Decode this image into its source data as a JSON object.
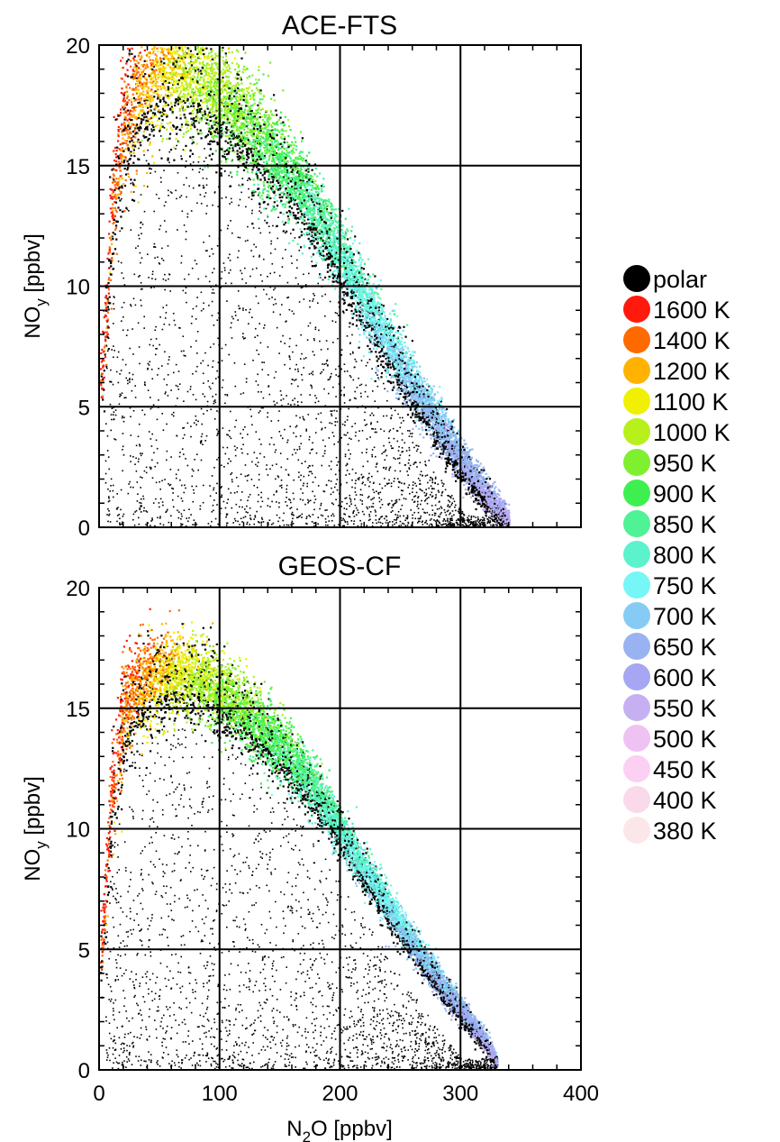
{
  "chart_data": [
    {
      "type": "scatter",
      "title": "ACE-FTS",
      "xlabel": "",
      "ylabel": {
        "base": "NO",
        "sub": "y",
        "unit": " [ppbv]"
      },
      "xlim": [
        0,
        400
      ],
      "ylim": [
        0,
        20
      ],
      "xticks": [
        0,
        100,
        200,
        300,
        400
      ],
      "xtick_labels_shown": false,
      "yticks": [
        0,
        5,
        10,
        15,
        20
      ],
      "grid": true,
      "series": [
        {
          "kind": "ridge",
          "x": [
            2,
            10,
            20,
            30,
            40,
            50,
            60,
            80,
            100,
            120,
            140,
            160,
            180,
            200,
            220,
            240,
            260,
            280,
            300,
            320,
            340
          ],
          "y": [
            6,
            13,
            16.5,
            17.8,
            18.5,
            18.8,
            18.9,
            18.6,
            17.8,
            16.8,
            15.6,
            14.4,
            13.0,
            11.2,
            9.4,
            7.6,
            5.9,
            4.3,
            2.8,
            1.4,
            0.3
          ],
          "spread": [
            2.5,
            3.2,
            3.4,
            3.4,
            3.4,
            3.3,
            3.2,
            3.0,
            2.8,
            2.6,
            2.4,
            2.2,
            2.0,
            1.9,
            1.8,
            1.7,
            1.5,
            1.3,
            1.1,
            0.9,
            0.6
          ]
        },
        {
          "kind": "polar-scatter",
          "x": [
            5,
            330
          ],
          "y": [
            0,
            14
          ]
        }
      ]
    },
    {
      "type": "scatter",
      "title": "GEOS-CF",
      "xlabel": {
        "base": "N",
        "sub": "2",
        "rest": "O",
        "unit": " [ppbv]"
      },
      "ylabel": {
        "base": "NO",
        "sub": "y",
        "unit": " [ppbv]"
      },
      "xlim": [
        0,
        400
      ],
      "ylim": [
        0,
        20
      ],
      "xticks": [
        0,
        100,
        200,
        300,
        400
      ],
      "xtick_labels_shown": true,
      "yticks": [
        0,
        5,
        10,
        15,
        20
      ],
      "grid": true,
      "series": [
        {
          "kind": "ridge",
          "x": [
            2,
            10,
            20,
            30,
            40,
            50,
            60,
            80,
            100,
            120,
            140,
            160,
            180,
            200,
            220,
            240,
            260,
            280,
            300,
            320,
            330
          ],
          "y": [
            5,
            11.5,
            14.8,
            15.6,
            16.0,
            16.3,
            16.4,
            16.2,
            15.6,
            14.8,
            13.9,
            12.8,
            11.5,
            9.9,
            8.3,
            6.7,
            5.2,
            3.8,
            2.5,
            1.2,
            0.3
          ],
          "spread": [
            2.0,
            2.8,
            2.8,
            2.6,
            2.4,
            2.2,
            2.1,
            2.0,
            2.0,
            1.9,
            1.8,
            1.6,
            1.4,
            1.2,
            1.1,
            1.0,
            0.9,
            0.8,
            0.7,
            0.5,
            0.3
          ]
        },
        {
          "kind": "polar-scatter",
          "x": [
            5,
            330
          ],
          "y": [
            0,
            13
          ]
        }
      ]
    }
  ],
  "legend": {
    "placement": "right",
    "entries": [
      {
        "label": "polar",
        "color": "#000000"
      },
      {
        "label": "1600 K",
        "color": "#ff1a0d"
      },
      {
        "label": "1400 K",
        "color": "#ff6a00"
      },
      {
        "label": "1200 K",
        "color": "#ffb300"
      },
      {
        "label": "1100 K",
        "color": "#f0f000"
      },
      {
        "label": "1000 K",
        "color": "#b8f01c"
      },
      {
        "label": "950 K",
        "color": "#7ff030"
      },
      {
        "label": "900 K",
        "color": "#3df050"
      },
      {
        "label": "850 K",
        "color": "#4ff294"
      },
      {
        "label": "800 K",
        "color": "#5cf2cc"
      },
      {
        "label": "750 K",
        "color": "#76f6f6"
      },
      {
        "label": "700 K",
        "color": "#86cbf4"
      },
      {
        "label": "650 K",
        "color": "#98b2f2"
      },
      {
        "label": "600 K",
        "color": "#a6a6f2"
      },
      {
        "label": "550 K",
        "color": "#c7b0f2"
      },
      {
        "label": "500 K",
        "color": "#efc2f4"
      },
      {
        "label": "450 K",
        "color": "#fbd0f2"
      },
      {
        "label": "400 K",
        "color": "#f9d9ea"
      },
      {
        "label": "380 K",
        "color": "#fbe7ea"
      }
    ]
  }
}
